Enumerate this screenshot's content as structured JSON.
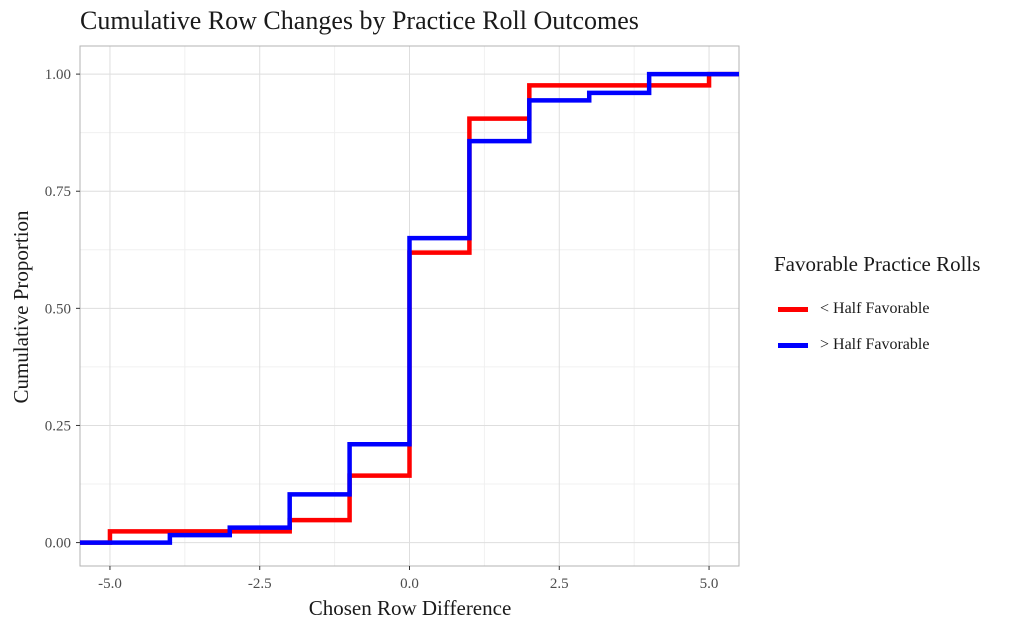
{
  "chart_data": {
    "type": "line",
    "step": true,
    "title": "Cumulative Row Changes by Practice Roll Outcomes",
    "xlabel": "Chosen Row Difference",
    "ylabel": "Cumulative Proportion",
    "xlim": [
      -5.5,
      5.5
    ],
    "ylim": [
      -0.05,
      1.06
    ],
    "xticks": [
      -5,
      -2.5,
      0,
      2.5,
      5
    ],
    "xtick_labels": [
      "-5.0",
      "-2.5",
      "0.0",
      "2.5",
      "5.0"
    ],
    "yticks": [
      0,
      0.25,
      0.5,
      0.75,
      1
    ],
    "ytick_labels": [
      "0.00",
      "0.25",
      "0.50",
      "0.75",
      "1.00"
    ],
    "grid": true,
    "legend": {
      "title": "Favorable Practice Rolls",
      "position": "right"
    },
    "series": [
      {
        "name": "< Half Favorable",
        "color": "#ff0000",
        "steps": [
          {
            "x": -5,
            "y": 0.024
          },
          {
            "x": -2,
            "y": 0.048
          },
          {
            "x": -1,
            "y": 0.143
          },
          {
            "x": 0,
            "y": 0.619
          },
          {
            "x": 1,
            "y": 0.905
          },
          {
            "x": 2,
            "y": 0.976
          },
          {
            "x": 5,
            "y": 1.0
          }
        ]
      },
      {
        "name": "> Half Favorable",
        "color": "#0000ff",
        "steps": [
          {
            "x": -4,
            "y": 0.016
          },
          {
            "x": -3,
            "y": 0.032
          },
          {
            "x": -2,
            "y": 0.103
          },
          {
            "x": -1,
            "y": 0.21
          },
          {
            "x": 0,
            "y": 0.65
          },
          {
            "x": 1,
            "y": 0.857
          },
          {
            "x": 2,
            "y": 0.944
          },
          {
            "x": 3,
            "y": 0.96
          },
          {
            "x": 4,
            "y": 1.0
          }
        ]
      }
    ]
  }
}
